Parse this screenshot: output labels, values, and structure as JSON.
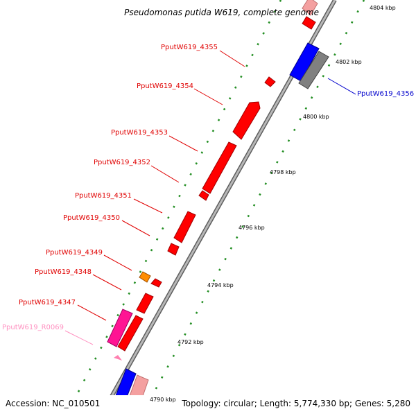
{
  "title": "Pseudomonas putida W619, complete genome",
  "footer": {
    "accession": "Accession: NC_010501",
    "stats": "Topology: circular; Length: 5,774,330 bp; Genes: 5,280"
  },
  "colors": {
    "cds_forward": "#ff0000",
    "cds_reverse": "#0000ff",
    "cds_reverse_alt": "#808080",
    "rrna_trna": "#ff1493",
    "other_feature": "#ff8c00",
    "pale_red": "#f4a0a0",
    "label_red": "#e00000",
    "label_blue": "#0000cc",
    "label_pink": "#ff90c0",
    "tick_green": "#1a8a1a",
    "backbone": "#8a8a8a"
  },
  "genes": [
    {
      "id": "PputW619_4355",
      "color_key": "label_red"
    },
    {
      "id": "PputW619_4356",
      "color_key": "label_blue"
    },
    {
      "id": "PputW619_4354",
      "color_key": "label_red"
    },
    {
      "id": "PputW619_4353",
      "color_key": "label_red"
    },
    {
      "id": "PputW619_4352",
      "color_key": "label_red"
    },
    {
      "id": "PputW619_4351",
      "color_key": "label_red"
    },
    {
      "id": "PputW619_4350",
      "color_key": "label_red"
    },
    {
      "id": "PputW619_4349",
      "color_key": "label_red"
    },
    {
      "id": "PputW619_4348",
      "color_key": "label_red"
    },
    {
      "id": "PputW619_4347",
      "color_key": "label_red"
    },
    {
      "id": "PputW619_R0069",
      "color_key": "label_pink"
    }
  ],
  "scale_labels": [
    "4804 kbp",
    "4802 kbp",
    "4800 kbp",
    "4798 kbp",
    "4796 kbp",
    "4794 kbp",
    "4792 kbp",
    "4790 kbp"
  ]
}
